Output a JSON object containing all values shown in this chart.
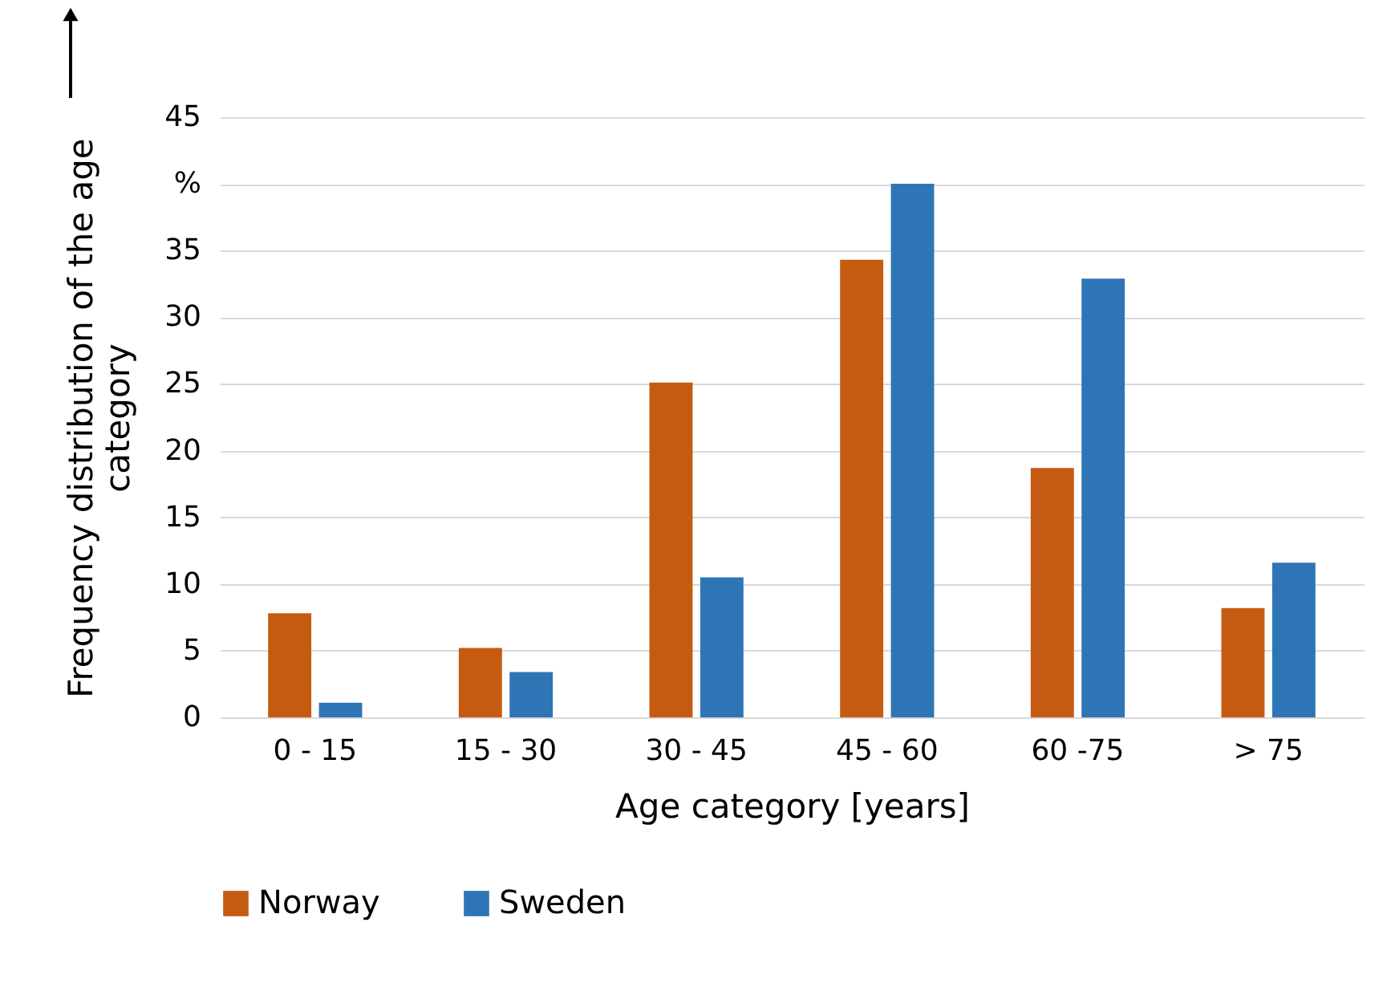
{
  "chart_data": {
    "type": "bar",
    "xlabel": "Age category [years]",
    "ylabel": "Frequency distribution of the age\ncategory",
    "categories": [
      "0 - 15",
      "15 - 30",
      "30 - 45",
      "45 - 60",
      "60 -75",
      "> 75"
    ],
    "series": [
      {
        "name": "Norway",
        "color": "#c55a11",
        "values": [
          7.8,
          5.2,
          25.1,
          34.3,
          18.7,
          8.2
        ]
      },
      {
        "name": "Sweden",
        "color": "#2e75b6",
        "values": [
          1.1,
          3.4,
          10.5,
          40,
          32.9,
          11.6
        ]
      }
    ],
    "ylim": [
      0,
      45
    ],
    "yticks": [
      0,
      5,
      10,
      15,
      20,
      25,
      30,
      35,
      {
        "value": 40,
        "label": "%"
      },
      45
    ],
    "grid": "y",
    "legend": "bottom"
  }
}
